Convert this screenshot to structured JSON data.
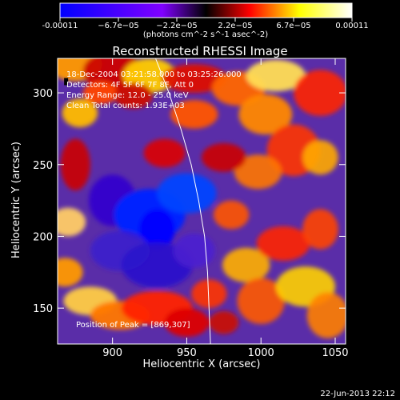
{
  "colors": {
    "background": "#000000",
    "foreground": "#ffffff"
  },
  "chart_data": {
    "type": "heatmap",
    "title": "Reconstructed RHESSI Image",
    "xlabel": "Heliocentric X (arcsec)",
    "ylabel": "Heliocentric Y (arcsec)",
    "xlim": [
      863,
      1057
    ],
    "ylim": [
      125,
      324
    ],
    "x_ticks": [
      900,
      950,
      1000,
      1050
    ],
    "y_ticks": [
      150,
      200,
      250,
      300
    ],
    "colorbar": {
      "min": -0.00011,
      "max": 0.00011,
      "ticks": [
        "-0.00011",
        "−6.7e−05",
        "−2.2e−05",
        "2.2e−05",
        "6.7e−05",
        "0.00011"
      ],
      "unit_label": "(photons cm^-2 s^-1 asec^-2)"
    },
    "annotations": [
      "18-Dec-2004 03:21:58.000 to 03:25:26.000",
      "Detectors: 4F 5F 6F 7F 8F, Att 0",
      "Energy Range: 12.0 - 25.0 keV",
      "Clean     Total counts: 1.93E+03"
    ],
    "peak_label": "Position of Peak = [869,307]",
    "peak": [
      869,
      307
    ],
    "limb": [
      [
        929,
        324
      ],
      [
        938,
        300
      ],
      [
        946,
        275
      ],
      [
        953,
        250
      ],
      [
        958,
        225
      ],
      [
        962,
        200
      ],
      [
        964,
        175
      ],
      [
        965,
        150
      ],
      [
        966,
        125
      ]
    ],
    "timestamp": "22-Jun-2013 22:12",
    "grid": false,
    "legend": "none"
  }
}
